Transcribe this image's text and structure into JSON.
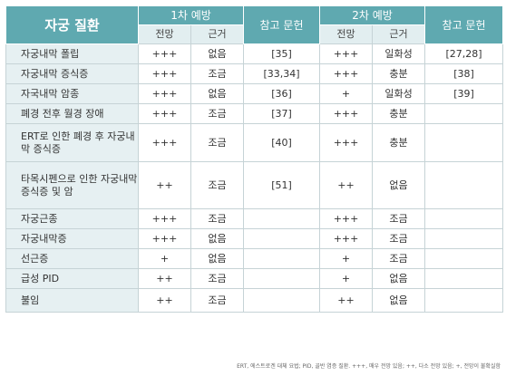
{
  "header": {
    "disease": "자궁 질환",
    "first_prevention": "1차 예방",
    "second_prevention": "2차 예방",
    "reference_1": "참고 문헌",
    "reference_2": "참고 문헌",
    "outlook": "전망",
    "basis": "근거",
    "outlook_2": "전망",
    "basis_2": "근거"
  },
  "rows": [
    {
      "name": "자궁내막 폴립",
      "p1": "+++",
      "b1": "없음",
      "ref1": "[35]",
      "p2": "+++",
      "b2": "일화성",
      "ref2": "[27,28]"
    },
    {
      "name": "자궁내막 증식증",
      "p1": "+++",
      "b1": "조금",
      "ref1": "[33,34]",
      "p2": "+++",
      "b2": "충분",
      "ref2": "[38]"
    },
    {
      "name": "자국내막 암종",
      "p1": "+++",
      "b1": "없음",
      "ref1": "[36]",
      "p2": "+",
      "b2": "일화성",
      "ref2": "[39]"
    },
    {
      "name": "폐경 전후 월경 장애",
      "p1": "+++",
      "b1": "조금",
      "ref1": "[37]",
      "p2": "+++",
      "b2": "충분",
      "ref2": ""
    },
    {
      "name": "ERT로 인한 폐경 후 자궁내막 증식증",
      "p1": "+++",
      "b1": "조금",
      "ref1": "[40]",
      "p2": "+++",
      "b2": "충분",
      "ref2": ""
    },
    {
      "name": "타목시펜으로 인한 자궁내막 증식증 및 암",
      "p1": "++",
      "b1": "조금",
      "ref1": "[51]",
      "p2": "++",
      "b2": "없음",
      "ref2": ""
    },
    {
      "name": "자궁근종",
      "p1": "+++",
      "b1": "조금",
      "ref1": "",
      "p2": "+++",
      "b2": "조금",
      "ref2": ""
    },
    {
      "name": "자궁내막증",
      "p1": "+++",
      "b1": "없음",
      "ref1": "",
      "p2": "+++",
      "b2": "조금",
      "ref2": ""
    },
    {
      "name": "선근증",
      "p1": "+",
      "b1": "없음",
      "ref1": "",
      "p2": "+",
      "b2": "조금",
      "ref2": ""
    },
    {
      "name": "급성 PID",
      "p1": "++",
      "b1": "조금",
      "ref1": "",
      "p2": "+",
      "b2": "없음",
      "ref2": ""
    },
    {
      "name": "불임",
      "p1": "++",
      "b1": "조금",
      "ref1": "",
      "p2": "++",
      "b2": "없음",
      "ref2": ""
    }
  ],
  "footnote": "ERT, 에스트로겐 대체 요법; PID, 골반 염증 질환.   +++, 매우 전망 있음; ++, 다소 전망 있음; +, 전망이 불확실함"
}
